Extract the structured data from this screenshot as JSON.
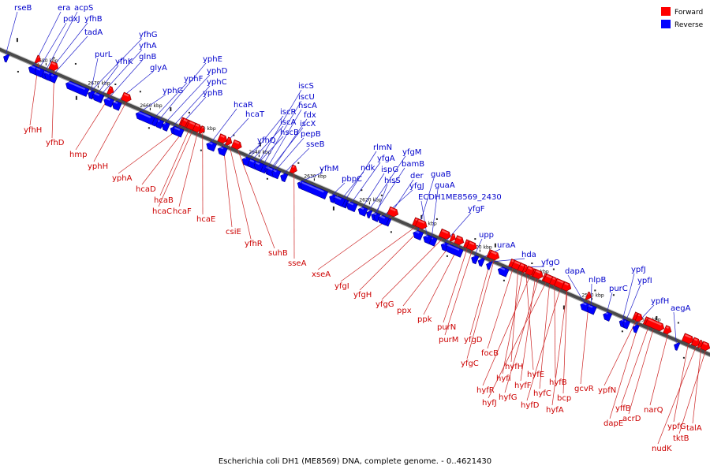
{
  "title": "Escherichia coli DH1 (ME8569) DNA, complete genome. - 0..4621430",
  "colors": {
    "forward": "#ff0000",
    "reverse": "#0000ff",
    "forward_label": "#cc0000",
    "reverse_label": "#0000cc",
    "axis": "#555555"
  },
  "legend": [
    {
      "key": "forward",
      "label": "Forward"
    },
    {
      "key": "reverse",
      "label": "Reverse"
    }
  ],
  "ticks": [
    "2680 kbp",
    "2670 kbp",
    "2660 kbp",
    "2650 kbp",
    "2640 kbp",
    "2630 kbp",
    "2620 kbp",
    "2610 kbp",
    "2600 kbp",
    "2590 kbp",
    "2580 kbp",
    "2570 kbp"
  ],
  "reverse_genes": [
    "rseB",
    "era",
    "acpS",
    "pdxJ",
    "yfhB",
    "tadA",
    "purL",
    "yfhG",
    "yfhA",
    "yfhK",
    "glnB",
    "glyA",
    "yphE",
    "yphD",
    "yphF",
    "yphC",
    "yphG",
    "yphB",
    "hcaR",
    "hcaT",
    "iscS",
    "iscU",
    "hscA",
    "iscR",
    "fdx",
    "iscA",
    "iscX",
    "hscB",
    "pepB",
    "yfhQ",
    "sseB",
    "rlmN",
    "yfgM",
    "yfgA",
    "ndk",
    "ispG",
    "bamB",
    "yfhM",
    "pbpC",
    "hisS",
    "der",
    "yfgJ",
    "guaB",
    "guaA",
    "ECDH1ME8569_2430",
    "yfgF",
    "upp",
    "uraA",
    "hda",
    "yfgO",
    "dapA",
    "nlpB",
    "purC",
    "ypfJ",
    "ypfI",
    "ypfH",
    "aegA"
  ],
  "forward_genes": [
    "yfhH",
    "yfhD",
    "hmp",
    "yphH",
    "yphA",
    "hcaD",
    "hcaB",
    "hcaC",
    "hcaF",
    "hcaE",
    "csiE",
    "yfhR",
    "suhB",
    "sseA",
    "xseA",
    "yfgI",
    "yfgH",
    "yfgG",
    "ppx",
    "ppk",
    "purN",
    "purM",
    "yfgD",
    "yfgC",
    "focB",
    "hyfH",
    "hyfI",
    "hyfE",
    "hyfR",
    "hyfF",
    "hyfG",
    "hyfJ",
    "hyfC",
    "hyfB",
    "hyfD",
    "bcp",
    "gcvR",
    "hyfA",
    "ypfN",
    "yffB",
    "dapE",
    "acrD",
    "narQ",
    "ypfG",
    "nudK",
    "talA",
    "tktB"
  ]
}
